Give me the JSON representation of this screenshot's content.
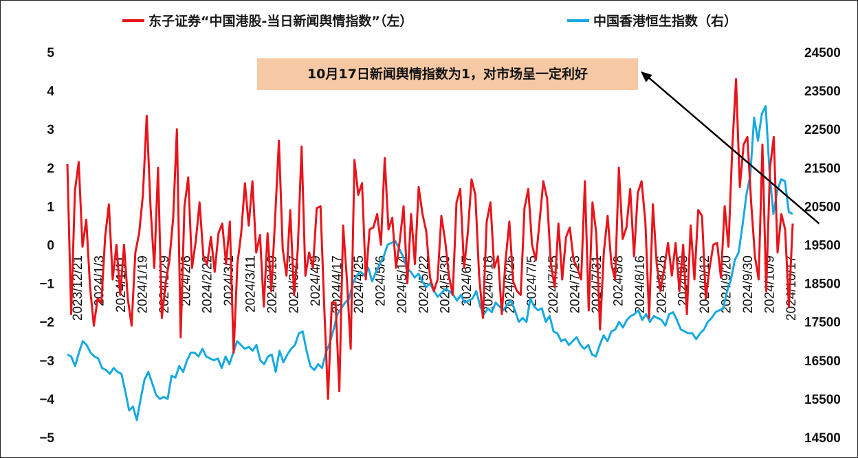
{
  "chart_data": {
    "type": "line",
    "title": "",
    "legend": {
      "placement": "top-center",
      "entries": [
        {
          "label": "东子证券“中国港股-当日新闻舆情指数”（左）",
          "color": "#e8141b"
        },
        {
          "label": "中国香港恒生指数（右）",
          "color": "#16a9e1"
        }
      ]
    },
    "annotation": {
      "text": "10月17日新闻舆情指数为1，对市场呈一定利好",
      "background": "#f6c9a4"
    },
    "y_left": {
      "range": [
        -5,
        5
      ],
      "ticks": [
        "5",
        "4",
        "3",
        "2",
        "1",
        "0",
        "−1",
        "−2",
        "−3",
        "−4",
        "−5"
      ]
    },
    "y_right": {
      "range": [
        14500,
        24500
      ],
      "ticks": [
        "24500",
        "23500",
        "22500",
        "21500",
        "20500",
        "19500",
        "18500",
        "17500",
        "16500",
        "15500",
        "14500"
      ]
    },
    "x_ticks": [
      "2023/12/21",
      "2024/1/3",
      "2024/1/11",
      "2024/1/19",
      "2024/1/29",
      "2024/2/6",
      "2024/2/22",
      "2024/3/1",
      "2024/3/11",
      "2024/3/19",
      "2024/3/27",
      "2024/4/9",
      "2024/4/17",
      "2024/4/25",
      "2024/5/6",
      "2024/5/14",
      "2024/5/22",
      "2024/5/30",
      "2024/6/7",
      "2024/6/18",
      "2024/6/26",
      "2024/7/5",
      "2024/7/15",
      "2024/7/23",
      "2024/7/31",
      "2024/8/8",
      "2024/8/16",
      "2024/8/26",
      "2024/9/3",
      "2024/9/12",
      "2024/9/20",
      "2024/9/30",
      "2024/10/9",
      "2024/10/17"
    ],
    "series": [
      {
        "name": "东子证券“中国港股-当日新闻舆情指数”（左）",
        "axis": "left",
        "color": "#e8141b",
        "values": [
          2.1,
          -1.8,
          1.4,
          2.15,
          -0.05,
          0.65,
          -1.1,
          -2.1,
          -1.4,
          -1.5,
          0.2,
          1.05,
          -0.9,
          0.0,
          -1.3,
          0.0,
          -1.4,
          -2.1,
          -0.2,
          0.3,
          1.3,
          3.35,
          1.0,
          -0.6,
          2.0,
          -1.9,
          -1.0,
          -0.4,
          0.7,
          3.0,
          -2.4,
          1.0,
          1.75,
          -0.6,
          0.1,
          1.1,
          -0.3,
          -0.5,
          0.2,
          -0.7,
          0.3,
          0.55,
          -0.5,
          0.6,
          -2.8,
          -0.5,
          0.3,
          1.6,
          0.5,
          1.65,
          -0.2,
          0.25,
          -1.6,
          0.3,
          -1.2,
          0.7,
          2.7,
          -0.1,
          -0.8,
          0.9,
          -1.3,
          -0.1,
          2.55,
          -0.8,
          -0.2,
          -0.6,
          0.95,
          1.0,
          -1.6,
          -4.0,
          -1.5,
          -1.5,
          -3.8,
          0.5,
          -0.9,
          -2.7,
          2.2,
          1.3,
          1.6,
          -0.9,
          0.4,
          0.45,
          0.8,
          0.0,
          2.25,
          0.4,
          0.7,
          -0.6,
          0.1,
          1.0,
          -1.0,
          0.8,
          -0.5,
          1.5,
          0.8,
          0.35,
          -0.85,
          -1.2,
          -0.9,
          0.75,
          0.1,
          -0.8,
          -1.3,
          1.1,
          1.45,
          -0.6,
          0.3,
          1.7,
          1.3,
          -0.8,
          -1.9,
          0.6,
          1.1,
          -0.6,
          -0.3,
          -1.8,
          -0.4,
          0.6,
          -0.95,
          -1.2,
          -1.3,
          0.95,
          1.45,
          0.0,
          -0.4,
          0.6,
          1.65,
          1.2,
          -0.5,
          -1.1,
          0.55,
          -0.9,
          0.2,
          0.45,
          -0.4,
          -0.6,
          -0.9,
          1.65,
          -1.7,
          1.1,
          0.3,
          -2.2,
          -0.2,
          0.75,
          -0.5,
          -0.9,
          2.0,
          0.15,
          0.45,
          1.45,
          -0.3,
          1.35,
          1.65,
          0.6,
          -1.9,
          1.05,
          -0.5,
          -1.2,
          -0.6,
          0.05,
          -0.8,
          0.05,
          -1.2,
          0.0,
          -1.8,
          0.5,
          -0.9,
          0.9,
          0.75,
          -1.4,
          -0.6,
          0.0,
          0.05,
          -0.85,
          1.0,
          -0.05,
          2.5,
          4.3,
          1.5,
          2.6,
          2.8,
          1.1,
          -0.3,
          -0.9,
          2.6,
          -1.2,
          2.0,
          2.8,
          -0.2,
          0.8,
          0.4,
          -1.6,
          0.55
        ]
      },
      {
        "name": "中国香港恒生指数（右）",
        "axis": "right",
        "color": "#16a9e1",
        "values": [
          16650,
          16600,
          16350,
          16700,
          17000,
          16900,
          16700,
          16600,
          16550,
          16300,
          16250,
          16150,
          16300,
          16200,
          16150,
          15700,
          15200,
          15300,
          14950,
          15500,
          16000,
          16200,
          15900,
          15600,
          15500,
          15550,
          15500,
          16100,
          16050,
          16350,
          16200,
          16500,
          16700,
          16700,
          16600,
          16800,
          16600,
          16550,
          16500,
          16550,
          16300,
          16600,
          16400,
          16700,
          17000,
          16900,
          16800,
          16850,
          16750,
          16900,
          16500,
          16400,
          16600,
          16650,
          16200,
          16750,
          16450,
          16650,
          16800,
          16900,
          17200,
          17250,
          16750,
          16350,
          16250,
          16400,
          16300,
          16700,
          16950,
          17300,
          17700,
          17850,
          18000,
          18100,
          18500,
          18700,
          18800,
          18700,
          18900,
          18550,
          18800,
          19000,
          19200,
          19500,
          19550,
          19600,
          19400,
          19200,
          18900,
          18800,
          18650,
          18750,
          18550,
          18400,
          18500,
          18300,
          18150,
          18250,
          18350,
          18300,
          18200,
          18050,
          18200,
          18000,
          18050,
          18100,
          18300,
          17900,
          17700,
          17850,
          17750,
          18000,
          17900,
          17800,
          17950,
          18050,
          17800,
          17500,
          17600,
          17500,
          18100,
          17900,
          17800,
          17850,
          17500,
          17650,
          17250,
          17200,
          17000,
          17050,
          16900,
          17000,
          17100,
          16900,
          16800,
          16900,
          16650,
          16600,
          16900,
          17150,
          17000,
          17250,
          17300,
          17500,
          17350,
          17550,
          17650,
          17700,
          17800,
          17550,
          17700,
          17500,
          17650,
          17600,
          17550,
          17400,
          17700,
          17750,
          17550,
          17300,
          17250,
          17200,
          17200,
          17050,
          17200,
          17300,
          17500,
          17600,
          17750,
          17800,
          17850,
          18300,
          18600,
          19100,
          19300,
          20000,
          20800,
          21300,
          22800,
          22200,
          22900,
          23100,
          21400,
          20300,
          20900,
          21200,
          21150,
          20350,
          20300
        ]
      }
    ],
    "arrow_target": {
      "index": 199,
      "axis": "left",
      "value": 0.55
    }
  }
}
